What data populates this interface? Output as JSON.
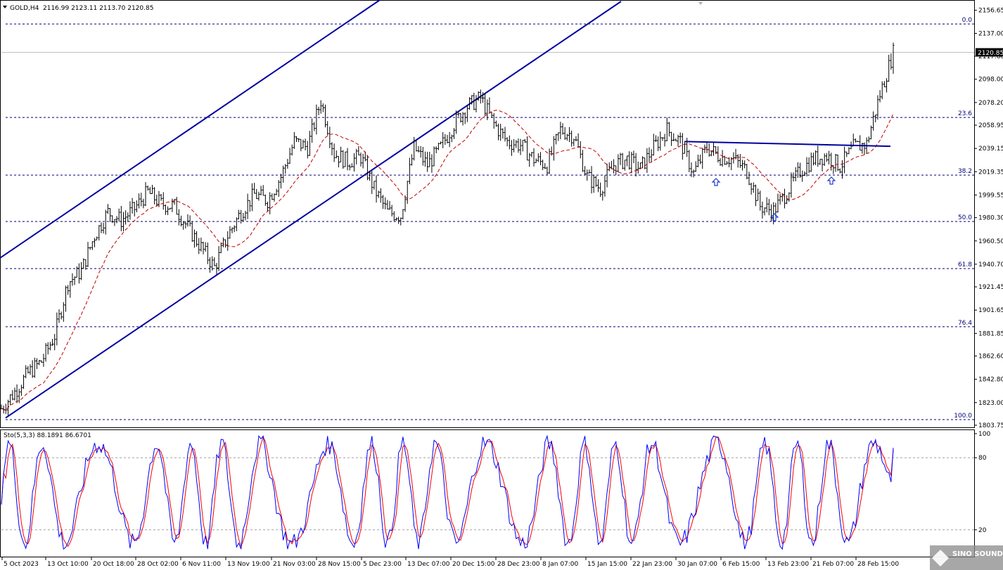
{
  "header": {
    "symbol": "GOLD,H4",
    "ohlc": "2116.99 2123.11 2113.70 2120.85"
  },
  "price_panel": {
    "current_price": "2120.85",
    "ylim": [
      1803.75,
      2163.0
    ],
    "y_ticks": [
      "2156.65",
      "2137.00",
      "2117.60",
      "2098.00",
      "2078.20",
      "2058.95",
      "2039.15",
      "2019.35",
      "1999.55",
      "1980.30",
      "1960.50",
      "1940.70",
      "1921.45",
      "1901.65",
      "1881.85",
      "1862.60",
      "1842.80",
      "1823.00",
      "1803.75"
    ]
  },
  "fibonacci": {
    "levels": [
      {
        "label": "0.0",
        "price": 2145.0
      },
      {
        "label": "23.6",
        "price": 2065.5
      },
      {
        "label": "38.2",
        "price": 2016.5
      },
      {
        "label": "50.0",
        "price": 1977.0
      },
      {
        "label": "61.8",
        "price": 1937.0
      },
      {
        "label": "76.4",
        "price": 1887.5
      },
      {
        "label": "100.0",
        "price": 1808.5
      }
    ]
  },
  "x_axis": {
    "labels": [
      "5 Oct 2023",
      "13 Oct 10:00",
      "20 Oct 18:00",
      "28 Oct 02:00",
      "6 Nov 11:00",
      "13 Nov 19:00",
      "21 Nov 03:00",
      "28 Nov 15:00",
      "5 Dec 23:00",
      "13 Dec 07:00",
      "20 Dec 15:00",
      "28 Dec 23:00",
      "8 Jan 07:00",
      "15 Jan 15:00",
      "22 Jan 23:00",
      "30 Jan 07:00",
      "6 Feb 15:00",
      "13 Feb 23:00",
      "21 Feb 07:00",
      "28 Feb 15:00"
    ]
  },
  "stoch_panel": {
    "header": "Sto(5,3,3) 88.1891 86.6701",
    "ylim": [
      0,
      100
    ],
    "y_ticks": [
      "100",
      "80",
      "20"
    ]
  },
  "watermark": {
    "text": "SINO SOUND"
  },
  "colors": {
    "candle": "#000000",
    "ma": "#c00000",
    "channel": "#0000a0",
    "fib": "#00007a",
    "stoch_main": "#0000ff",
    "stoch_signal": "#ff0000",
    "arrow": "#1e3cc8"
  },
  "chart_data": {
    "type": "candlestick",
    "symbol": "GOLD",
    "timeframe": "H4",
    "last": {
      "open": 2116.99,
      "high": 2123.11,
      "low": 2113.7,
      "close": 2120.85
    },
    "price_path": [
      {
        "date": "5 Oct 2023",
        "close": 1818
      },
      {
        "date": "5 Oct 2023",
        "close": 1832
      },
      {
        "date": "5 Oct 2023",
        "close": 1848
      },
      {
        "date": "13 Oct 10:00",
        "close": 1858
      },
      {
        "date": "13 Oct 10:00",
        "close": 1880
      },
      {
        "date": "13 Oct 10:00",
        "close": 1925
      },
      {
        "date": "13 Oct 10:00",
        "close": 1935
      },
      {
        "date": "13 Oct 10:00",
        "close": 1965
      },
      {
        "date": "20 Oct 18:00",
        "close": 1985
      },
      {
        "date": "20 Oct 18:00",
        "close": 1978
      },
      {
        "date": "20 Oct 18:00",
        "close": 1988
      },
      {
        "date": "28 Oct 02:00",
        "close": 2002
      },
      {
        "date": "28 Oct 02:00",
        "close": 1992
      },
      {
        "date": "28 Oct 02:00",
        "close": 1990
      },
      {
        "date": "6 Nov 11:00",
        "close": 1972
      },
      {
        "date": "6 Nov 11:00",
        "close": 1955
      },
      {
        "date": "13 Nov 19:00",
        "close": 1938
      },
      {
        "date": "13 Nov 19:00",
        "close": 1965
      },
      {
        "date": "13 Nov 19:00",
        "close": 1985
      },
      {
        "date": "21 Nov 03:00",
        "close": 2000
      },
      {
        "date": "21 Nov 03:00",
        "close": 1995
      },
      {
        "date": "21 Nov 03:00",
        "close": 2015
      },
      {
        "date": "28 Nov 15:00",
        "close": 2045
      },
      {
        "date": "28 Nov 15:00",
        "close": 2040
      },
      {
        "date": "28 Nov 15:00",
        "close": 2080
      },
      {
        "date": "28 Nov 15:00",
        "close": 2035
      },
      {
        "date": "5 Dec 23:00",
        "close": 2028
      },
      {
        "date": "5 Dec 23:00",
        "close": 2032
      },
      {
        "date": "5 Dec 23:00",
        "close": 2005
      },
      {
        "date": "5 Dec 23:00",
        "close": 1985
      },
      {
        "date": "13 Dec 07:00",
        "close": 1982
      },
      {
        "date": "13 Dec 07:00",
        "close": 2040
      },
      {
        "date": "13 Dec 07:00",
        "close": 2025
      },
      {
        "date": "20 Dec 15:00",
        "close": 2040
      },
      {
        "date": "20 Dec 15:00",
        "close": 2060
      },
      {
        "date": "20 Dec 15:00",
        "close": 2075
      },
      {
        "date": "28 Dec 23:00",
        "close": 2082
      },
      {
        "date": "28 Dec 23:00",
        "close": 2060
      },
      {
        "date": "28 Dec 23:00",
        "close": 2045
      },
      {
        "date": "8 Jan 07:00",
        "close": 2042
      },
      {
        "date": "8 Jan 07:00",
        "close": 2030
      },
      {
        "date": "8 Jan 07:00",
        "close": 2025
      },
      {
        "date": "8 Jan 07:00",
        "close": 2055
      },
      {
        "date": "15 Jan 15:00",
        "close": 2050
      },
      {
        "date": "15 Jan 15:00",
        "close": 2015
      },
      {
        "date": "15 Jan 15:00",
        "close": 2005
      },
      {
        "date": "22 Jan 23:00",
        "close": 2025
      },
      {
        "date": "22 Jan 23:00",
        "close": 2030
      },
      {
        "date": "22 Jan 23:00",
        "close": 2022
      },
      {
        "date": "30 Jan 07:00",
        "close": 2040
      },
      {
        "date": "30 Jan 07:00",
        "close": 2055
      },
      {
        "date": "30 Jan 07:00",
        "close": 2045
      },
      {
        "date": "6 Feb 15:00",
        "close": 2018
      },
      {
        "date": "6 Feb 15:00",
        "close": 2040
      },
      {
        "date": "6 Feb 15:00",
        "close": 2032
      },
      {
        "date": "6 Feb 15:00",
        "close": 2030
      },
      {
        "date": "13 Feb 23:00",
        "close": 2020
      },
      {
        "date": "13 Feb 23:00",
        "close": 1990
      },
      {
        "date": "13 Feb 23:00",
        "close": 1986
      },
      {
        "date": "13 Feb 23:00",
        "close": 2002
      },
      {
        "date": "21 Feb 07:00",
        "close": 2020
      },
      {
        "date": "21 Feb 07:00",
        "close": 2030
      },
      {
        "date": "21 Feb 07:00",
        "close": 2033
      },
      {
        "date": "21 Feb 07:00",
        "close": 2024
      },
      {
        "date": "28 Feb 15:00",
        "close": 2040
      },
      {
        "date": "28 Feb 15:00",
        "close": 2043
      },
      {
        "date": "28 Feb 15:00",
        "close": 2085
      },
      {
        "date": "28 Feb 15:00",
        "close": 2120.85
      }
    ],
    "horizontal_resistance": [
      {
        "date": "6 Feb 15:00",
        "price": 2045
      },
      {
        "date": "28 Feb 15:00",
        "price": 2041
      }
    ],
    "upward_arrows": [
      "6 Feb 15:00",
      "13 Feb 23:00",
      "21 Feb 07:00"
    ],
    "stochastic": {
      "k": 88.1891,
      "d": 86.6701,
      "levels": [
        20,
        80
      ]
    }
  }
}
